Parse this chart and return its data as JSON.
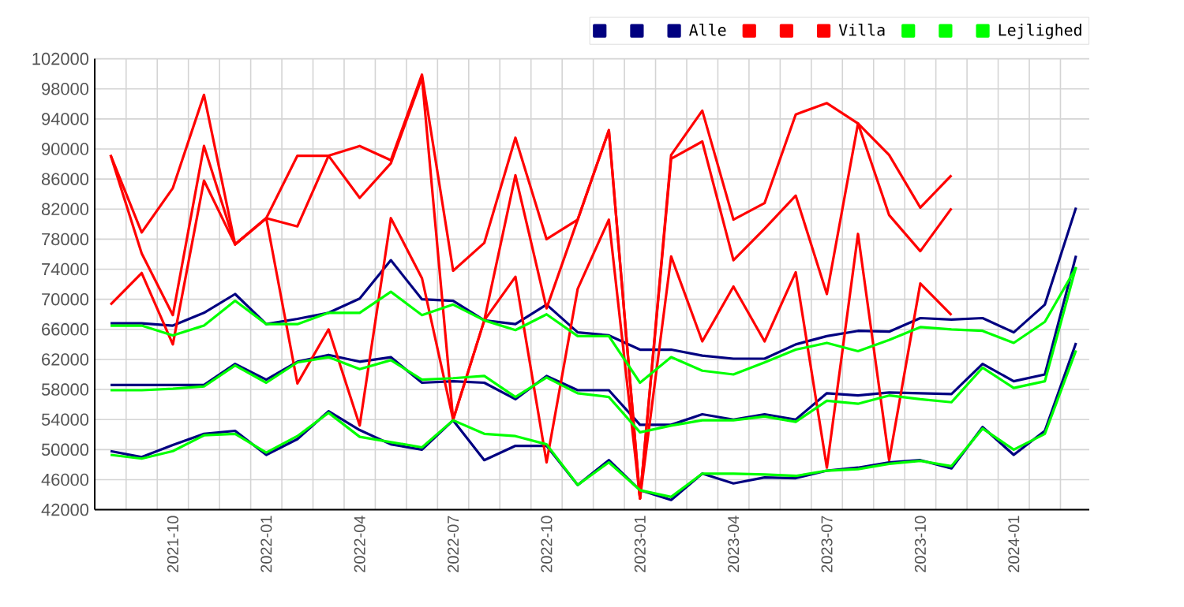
{
  "chart_data": {
    "type": "line",
    "x": [
      "2021-08",
      "2021-09",
      "2021-10",
      "2021-11",
      "2021-12",
      "2022-01",
      "2022-02",
      "2022-03",
      "2022-04",
      "2022-05",
      "2022-06",
      "2022-07",
      "2022-08",
      "2022-09",
      "2022-10",
      "2022-11",
      "2022-12",
      "2023-01",
      "2023-02",
      "2023-03",
      "2023-04",
      "2023-05",
      "2023-06",
      "2023-07",
      "2023-08",
      "2023-09",
      "2023-10",
      "2023-11",
      "2023-12",
      "2024-01",
      "2024-02",
      "2024-03"
    ],
    "series": [
      {
        "color": "#000080",
        "values": [
          49800,
          49000,
          50600,
          52100,
          52500,
          49300,
          51400,
          55100,
          52600,
          50700,
          50000,
          53900,
          48600,
          50500,
          50500,
          45300,
          48600,
          44600,
          43300,
          46800,
          45500,
          46300,
          46200,
          47200,
          47600,
          48300,
          48600,
          47500,
          53000,
          49300,
          52500,
          64200
        ]
      },
      {
        "color": "#000080",
        "values": [
          58600,
          58600,
          58600,
          58600,
          61400,
          59300,
          61700,
          62600,
          61700,
          62300,
          58900,
          59100,
          58900,
          56700,
          59800,
          57900,
          57900,
          53300,
          53300,
          54700,
          54000,
          54700,
          54000,
          57500,
          57200,
          57600,
          57500,
          57400,
          61400,
          59100,
          60000,
          75800
        ]
      },
      {
        "name": "Alle",
        "color": "#000080",
        "values": [
          66800,
          66800,
          66500,
          68200,
          70700,
          66700,
          67400,
          68200,
          70100,
          75200,
          70000,
          69800,
          67200,
          66700,
          69300,
          65600,
          65200,
          63300,
          63300,
          62500,
          62100,
          62100,
          64000,
          65100,
          65800,
          65700,
          67500,
          67300,
          67500,
          65600,
          69300,
          82200
        ]
      },
      {
        "color": "#ff0000",
        "values": [
          69300,
          73500,
          64000,
          85800,
          77300,
          80800,
          58800,
          66000,
          53200,
          80800,
          72800,
          54000,
          67200,
          73000,
          48300,
          71400,
          80600,
          43500,
          75700,
          64400,
          71700,
          64400,
          73600,
          47600,
          78700,
          48600,
          72100,
          67900,
          null,
          null,
          null,
          null
        ]
      },
      {
        "color": "#ff0000",
        "values": [
          89200,
          76100,
          67900,
          90400,
          77300,
          80800,
          79700,
          89100,
          83500,
          88100,
          99500,
          54000,
          67200,
          86500,
          68800,
          80600,
          92500,
          43500,
          88700,
          91000,
          75200,
          79400,
          83800,
          70700,
          93400,
          81200,
          76400,
          82100,
          null,
          null,
          null,
          null
        ]
      },
      {
        "name": "Villa",
        "color": "#ff0000",
        "values": [
          89200,
          78900,
          84800,
          97200,
          77300,
          80800,
          89100,
          89100,
          90400,
          88500,
          99900,
          73800,
          77500,
          91500,
          78000,
          80600,
          92500,
          43500,
          89200,
          95100,
          80600,
          82800,
          94600,
          96100,
          93400,
          89200,
          82200,
          86500,
          null,
          null,
          null,
          null
        ]
      },
      {
        "color": "#00ff00",
        "values": [
          49300,
          48800,
          49800,
          51900,
          52100,
          49600,
          51800,
          54900,
          51700,
          51000,
          50300,
          53900,
          52100,
          51800,
          50700,
          45300,
          48300,
          44600,
          43700,
          46800,
          46800,
          46700,
          46500,
          47200,
          47400,
          48100,
          48500,
          47800,
          52800,
          50000,
          52100,
          63200
        ]
      },
      {
        "color": "#00ff00",
        "values": [
          57900,
          57900,
          58100,
          58400,
          61200,
          58900,
          61600,
          62300,
          60700,
          61900,
          59300,
          59500,
          59800,
          57000,
          59600,
          57500,
          57000,
          52300,
          53200,
          53900,
          53900,
          54400,
          53700,
          56500,
          56100,
          57200,
          56700,
          56300,
          60900,
          58200,
          59100,
          74300
        ]
      },
      {
        "name": "Lejlighed",
        "color": "#00ff00",
        "values": [
          66500,
          66500,
          65200,
          66500,
          69800,
          66700,
          66700,
          68200,
          68200,
          71000,
          67900,
          69300,
          67200,
          65900,
          68000,
          65100,
          65100,
          58900,
          62300,
          60500,
          60000,
          61600,
          63300,
          64200,
          63100,
          64600,
          66300,
          66000,
          65800,
          64200,
          67000,
          74200
        ]
      }
    ],
    "xlim": [
      "2021-07-16",
      "2024-03-14"
    ],
    "xticks": [
      "2021-10",
      "2022-01",
      "2022-04",
      "2022-07",
      "2022-10",
      "2023-01",
      "2023-04",
      "2023-07",
      "2023-10",
      "2024-01"
    ],
    "ylim": [
      42000,
      102000
    ],
    "yticks": [
      42000,
      46000,
      50000,
      54000,
      58000,
      62000,
      66000,
      70000,
      74000,
      78000,
      82000,
      86000,
      90000,
      94000,
      98000,
      102000
    ],
    "grid": true,
    "legend": "top right",
    "marker": "none",
    "line_style": "solid"
  }
}
